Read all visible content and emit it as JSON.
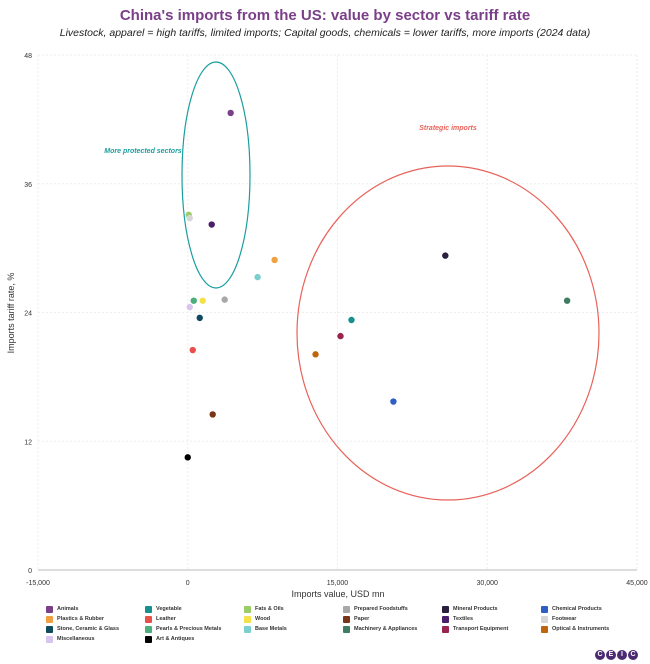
{
  "chart_data": {
    "type": "scatter",
    "title": "China's imports from the US: value by sector vs tariff rate",
    "subtitle": "Livestock, apparel = high tariffs, limited imports; Capital goods, chemicals = lower tariffs, more imports (2024 data)",
    "xlabel": "Imports value, USD mn",
    "ylabel": "Imports tariff rate, %",
    "xlim": [
      -15000,
      45000
    ],
    "ylim": [
      0,
      48
    ],
    "xticks": [
      "-15,000",
      "0",
      "15,000",
      "30,000",
      "45,000"
    ],
    "xtick_values": [
      -15000,
      0,
      15000,
      30000,
      45000
    ],
    "yticks": [
      "0",
      "12",
      "24",
      "36",
      "48"
    ],
    "ytick_values": [
      0,
      12,
      24,
      36,
      48
    ],
    "grid": true,
    "legend_position": "bottom",
    "annotations": [
      {
        "text": "More protected sectors",
        "color": "#1a9e9e"
      },
      {
        "text": "Strategic imports",
        "color": "#e8635a"
      }
    ],
    "series": [
      {
        "name": "Animals",
        "color": "#7b3f8a",
        "x": 4300,
        "y": 42.6
      },
      {
        "name": "Vegetable",
        "color": "#17908f",
        "x": 16400,
        "y": 23.3
      },
      {
        "name": "Fats & Oils",
        "color": "#9ccc65",
        "x": 100,
        "y": 33.1
      },
      {
        "name": "Prepared Foodstuffs",
        "color": "#a8a8a8",
        "x": 3700,
        "y": 25.2
      },
      {
        "name": "Mineral Products",
        "color": "#2a1f3d",
        "x": 25800,
        "y": 29.3
      },
      {
        "name": "Chemical Products",
        "color": "#2f5fc4",
        "x": 20600,
        "y": 15.7
      },
      {
        "name": "Plastics & Rubber",
        "color": "#f0a040",
        "x": 8700,
        "y": 28.9
      },
      {
        "name": "Leather",
        "color": "#e8504a",
        "x": 500,
        "y": 20.5
      },
      {
        "name": "Wood",
        "color": "#f5e14a",
        "x": 1500,
        "y": 25.1
      },
      {
        "name": "Paper",
        "color": "#7a3418",
        "x": 2500,
        "y": 14.5
      },
      {
        "name": "Textiles",
        "color": "#4a1e6a",
        "x": 2400,
        "y": 32.2
      },
      {
        "name": "Footwear",
        "color": "#d6d6d6",
        "x": 200,
        "y": 32.8
      },
      {
        "name": "Stone, Ceramic & Glass",
        "color": "#0f4a5e",
        "x": 1200,
        "y": 23.5
      },
      {
        "name": "Pearls & Precious Metals",
        "color": "#4cae7a",
        "x": 600,
        "y": 25.1
      },
      {
        "name": "Base Metals",
        "color": "#7ccfcf",
        "x": 7000,
        "y": 27.3
      },
      {
        "name": "Machinery & Appliances",
        "color": "#3e7d62",
        "x": 38000,
        "y": 25.1
      },
      {
        "name": "Transport Equipment",
        "color": "#9a2450",
        "x": 15300,
        "y": 21.8
      },
      {
        "name": "Optical & Instruments",
        "color": "#c0650c",
        "x": 12800,
        "y": 20.1
      },
      {
        "name": "Miscellaneous",
        "color": "#d8c4ef",
        "x": 200,
        "y": 24.5
      },
      {
        "name": "Art & Antiques",
        "color": "#000000",
        "x": 0,
        "y": 10.5
      }
    ]
  },
  "logo": "CEIC"
}
